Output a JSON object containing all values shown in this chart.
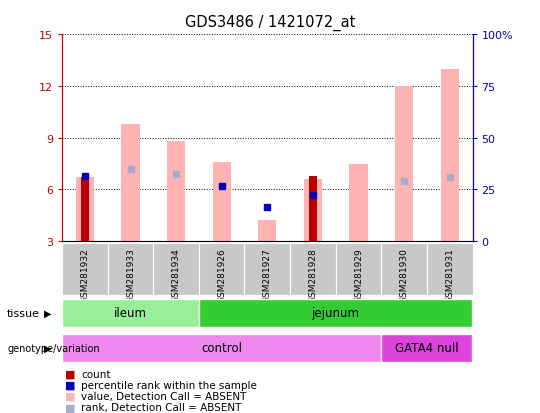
{
  "title": "GDS3486 / 1421072_at",
  "samples": [
    "GSM281932",
    "GSM281933",
    "GSM281934",
    "GSM281926",
    "GSM281927",
    "GSM281928",
    "GSM281929",
    "GSM281930",
    "GSM281931"
  ],
  "ylim_left": [
    3,
    15
  ],
  "ylim_right": [
    0,
    100
  ],
  "yticks_left": [
    3,
    6,
    9,
    12,
    15
  ],
  "yticks_right": [
    0,
    25,
    50,
    75,
    100
  ],
  "left_tick_labels": [
    "3",
    "6",
    "9",
    "12",
    "15"
  ],
  "right_tick_labels": [
    "0",
    "25",
    "50",
    "75",
    "100%"
  ],
  "pink_bars_top": [
    6.7,
    9.8,
    8.8,
    7.6,
    4.2,
    6.6,
    7.5,
    12.0,
    13.0
  ],
  "red_bars_top": [
    6.7,
    3.0,
    3.0,
    3.0,
    3.0,
    6.8,
    3.0,
    3.0,
    3.0
  ],
  "blue_squares_y": [
    6.8,
    null,
    null,
    6.2,
    5.0,
    5.7,
    null,
    null,
    null
  ],
  "blue_absent_y": [
    null,
    7.2,
    6.9,
    null,
    null,
    null,
    null,
    6.5,
    6.7
  ],
  "has_red": [
    true,
    false,
    false,
    false,
    false,
    true,
    false,
    false,
    false
  ],
  "tissue_groups": [
    {
      "label": "ileum",
      "start": 0,
      "end": 2,
      "color": "#99ee99"
    },
    {
      "label": "jejunum",
      "start": 3,
      "end": 8,
      "color": "#33cc33"
    }
  ],
  "genotype_groups": [
    {
      "label": "control",
      "start": 0,
      "end": 6,
      "color": "#ee88ee"
    },
    {
      "label": "GATA4 null",
      "start": 7,
      "end": 8,
      "color": "#dd44dd"
    }
  ],
  "sample_area_color": "#c8c8c8",
  "pink_color": "#ffb3b3",
  "red_color": "#bb0000",
  "blue_color": "#0000bb",
  "blue_absent_color": "#aaaacc",
  "left_axis_color": "#cc0000",
  "right_axis_color": "#0000cc",
  "bar_bottom": 3
}
